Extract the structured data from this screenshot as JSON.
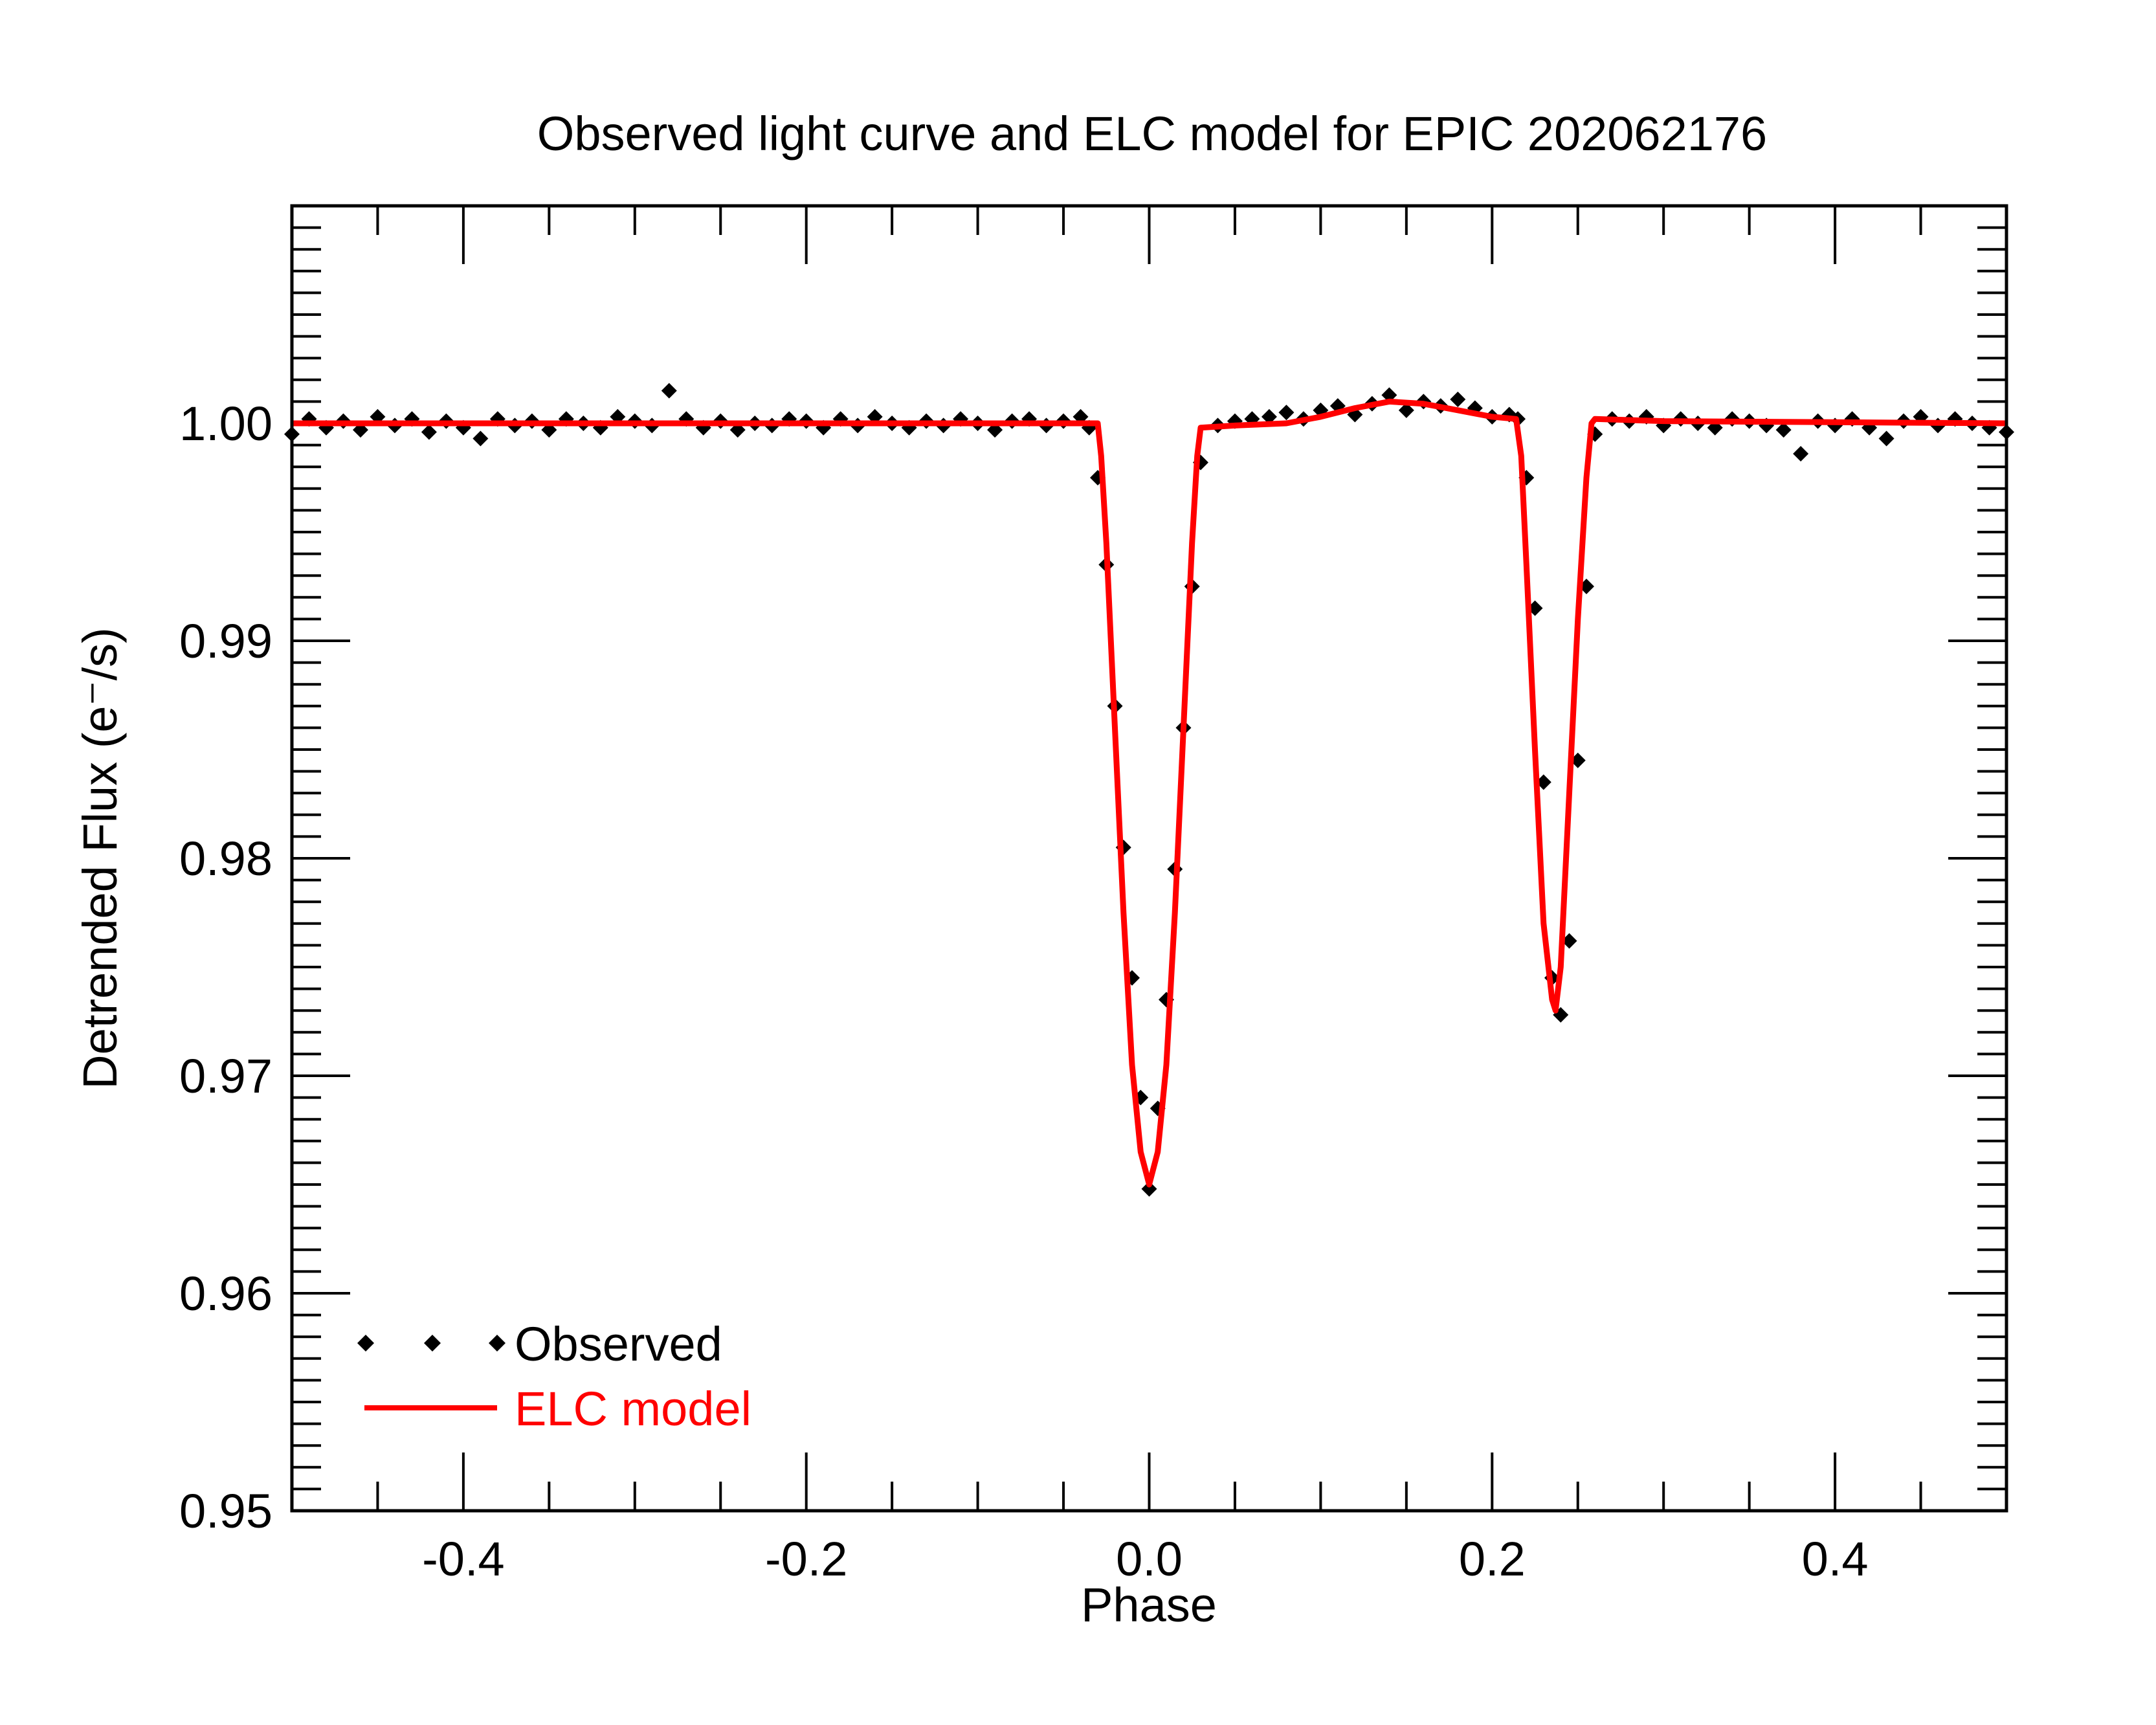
{
  "chart_data": {
    "type": "scatter",
    "title": "Observed light curve and ELC model for EPIC 202062176",
    "xlabel": "Phase",
    "ylabel": "Detrended Flux (e⁻/s)",
    "xlim": [
      -0.5,
      0.5
    ],
    "ylim": [
      0.95,
      1.01
    ],
    "x_ticks": [
      -0.4,
      -0.2,
      0.0,
      0.2,
      0.4
    ],
    "x_tick_labels": [
      "-0.4",
      "-0.2",
      "0.0",
      "0.2",
      "0.4"
    ],
    "y_ticks": [
      0.95,
      0.96,
      0.97,
      0.98,
      0.99,
      1.0
    ],
    "y_tick_labels": [
      "0.95",
      "0.96",
      "0.97",
      "0.98",
      "0.99",
      "1.00"
    ],
    "grid": false,
    "legend": {
      "placement": "bottom-left"
    },
    "series": [
      {
        "name": "Observed",
        "style": "diamond-markers",
        "color": "#000000",
        "x": [
          -0.5,
          -0.49,
          -0.48,
          -0.47,
          -0.46,
          -0.45,
          -0.44,
          -0.43,
          -0.42,
          -0.41,
          -0.4,
          -0.39,
          -0.38,
          -0.37,
          -0.36,
          -0.35,
          -0.34,
          -0.33,
          -0.32,
          -0.31,
          -0.3,
          -0.29,
          -0.28,
          -0.27,
          -0.26,
          -0.25,
          -0.24,
          -0.23,
          -0.22,
          -0.21,
          -0.2,
          -0.19,
          -0.18,
          -0.17,
          -0.16,
          -0.15,
          -0.14,
          -0.13,
          -0.12,
          -0.11,
          -0.1,
          -0.09,
          -0.08,
          -0.07,
          -0.06,
          -0.05,
          -0.04,
          -0.035,
          -0.03,
          -0.025,
          -0.02,
          -0.015,
          -0.01,
          -0.005,
          0.0,
          0.005,
          0.01,
          0.015,
          0.02,
          0.025,
          0.03,
          0.04,
          0.05,
          0.06,
          0.07,
          0.08,
          0.09,
          0.1,
          0.11,
          0.12,
          0.13,
          0.14,
          0.15,
          0.16,
          0.17,
          0.18,
          0.19,
          0.2,
          0.21,
          0.215,
          0.22,
          0.225,
          0.23,
          0.235,
          0.24,
          0.245,
          0.25,
          0.255,
          0.26,
          0.27,
          0.28,
          0.29,
          0.3,
          0.31,
          0.32,
          0.33,
          0.34,
          0.35,
          0.36,
          0.37,
          0.38,
          0.39,
          0.4,
          0.41,
          0.42,
          0.43,
          0.44,
          0.45,
          0.46,
          0.47,
          0.48,
          0.49,
          0.5
        ],
        "y": [
          0.9995,
          1.0002,
          0.9998,
          1.0001,
          0.9997,
          1.0003,
          0.9999,
          1.0002,
          0.9996,
          1.0001,
          0.9998,
          0.9993,
          1.0002,
          0.9999,
          1.0001,
          0.9997,
          1.0002,
          1.0,
          0.9998,
          1.0003,
          1.0001,
          0.9999,
          1.0015,
          1.0002,
          0.9998,
          1.0001,
          0.9997,
          1.0,
          0.9999,
          1.0002,
          1.0001,
          0.9998,
          1.0002,
          0.9999,
          1.0003,
          1.0,
          0.9998,
          1.0001,
          0.9999,
          1.0002,
          1.0,
          0.9997,
          1.0001,
          1.0002,
          0.9999,
          1.0001,
          1.0003,
          0.9998,
          0.9975,
          0.9935,
          0.987,
          0.9805,
          0.9745,
          0.969,
          0.9648,
          0.9685,
          0.9735,
          0.9795,
          0.986,
          0.9925,
          0.9982,
          0.9999,
          1.0001,
          1.0002,
          1.0003,
          1.0005,
          1.0002,
          1.0006,
          1.0008,
          1.0004,
          1.0009,
          1.0013,
          1.0006,
          1.001,
          1.0008,
          1.0011,
          1.0007,
          1.0003,
          1.0004,
          1.0002,
          0.9975,
          0.9915,
          0.9835,
          0.9745,
          0.9728,
          0.9762,
          0.9845,
          0.9925,
          0.9995,
          1.0002,
          1.0001,
          1.0003,
          0.9999,
          1.0002,
          1.0,
          0.9998,
          1.0002,
          1.0001,
          0.9999,
          0.9997,
          0.9986,
          1.0001,
          0.9999,
          1.0002,
          0.9998,
          0.9993,
          1.0001,
          1.0003,
          0.9999,
          1.0002,
          1.0,
          0.9998,
          0.9996
        ]
      },
      {
        "name": "ELC model",
        "style": "line",
        "color": "#ff0000",
        "x": [
          -0.5,
          -0.03,
          -0.028,
          -0.025,
          -0.02,
          -0.015,
          -0.01,
          -0.005,
          0.0,
          0.005,
          0.01,
          0.015,
          0.02,
          0.025,
          0.028,
          0.03,
          0.05,
          0.08,
          0.1,
          0.12,
          0.14,
          0.16,
          0.18,
          0.2,
          0.214,
          0.217,
          0.22,
          0.225,
          0.23,
          0.235,
          0.237,
          0.24,
          0.245,
          0.25,
          0.255,
          0.258,
          0.26,
          0.3,
          0.5
        ],
        "y": [
          1.0,
          1.0,
          0.9985,
          0.9945,
          0.986,
          0.9775,
          0.9705,
          0.9665,
          0.965,
          0.9665,
          0.9705,
          0.9775,
          0.986,
          0.9945,
          0.9985,
          0.9998,
          0.9999,
          1.0,
          1.0003,
          1.0007,
          1.001,
          1.0009,
          1.0006,
          1.0003,
          1.0002,
          0.9985,
          0.9935,
          0.985,
          0.977,
          0.9735,
          0.973,
          0.975,
          0.983,
          0.991,
          0.9975,
          1.0,
          1.0002,
          1.0001,
          1.0
        ]
      }
    ]
  }
}
